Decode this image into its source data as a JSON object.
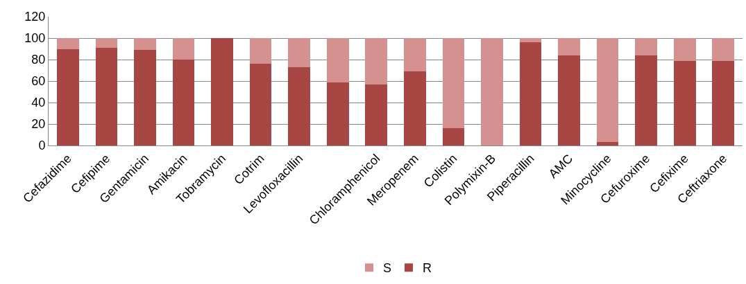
{
  "chart_data": {
    "type": "bar",
    "stacked": true,
    "categories": [
      "Cefazidime",
      "Cefipime",
      "Gentamicin",
      "Amikacin",
      "Tobramycin",
      "Cotrim",
      "Levofloxacillin",
      null,
      "Chloramphenicol",
      "Meropenem",
      "Colistin",
      "Polymixin-B",
      "Piperacillin",
      "AMC",
      "Minocycline",
      "Cefuroxime",
      "Cefixime",
      "Ceftriaxone"
    ],
    "series": [
      {
        "name": "R",
        "color": "#a84644",
        "values": [
          90,
          91,
          89,
          80,
          100,
          76,
          73,
          59,
          57,
          69,
          16,
          0,
          96,
          84,
          3,
          84,
          79,
          79
        ]
      },
      {
        "name": "S",
        "color": "#d49190",
        "values": [
          10,
          9,
          11,
          20,
          0,
          24,
          27,
          41,
          43,
          31,
          84,
          100,
          4,
          16,
          97,
          16,
          21,
          21
        ]
      }
    ],
    "ylim": [
      0,
      120
    ],
    "yticks": [
      0,
      20,
      40,
      60,
      80,
      100,
      120
    ],
    "grid": "y",
    "legend": "bottom"
  }
}
